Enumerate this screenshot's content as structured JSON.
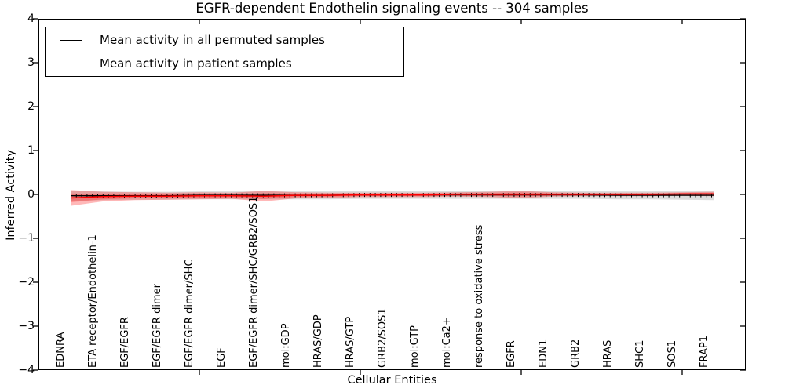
{
  "title": "EGFR-dependent Endothelin signaling events -- 304 samples",
  "axes": {
    "ylabel": "Inferred Activity",
    "xlabel": "Cellular Entities",
    "yticks": [
      "4",
      "3",
      "2",
      "1",
      "0",
      "−1",
      "−2",
      "−3",
      "−4"
    ],
    "ylim": [
      -4,
      4
    ]
  },
  "legend": {
    "items": [
      {
        "label": "Mean activity in all permuted samples",
        "color": "#000000"
      },
      {
        "label": "Mean activity in patient samples",
        "color": "#ff0000"
      }
    ]
  },
  "chart_data": {
    "type": "line",
    "title": "EGFR-dependent Endothelin signaling events -- 304 samples",
    "xlabel": "Cellular Entities",
    "ylabel": "Inferred Activity",
    "ylim": [
      -4,
      4
    ],
    "grid": false,
    "legend_position": "upper left",
    "categories": [
      "EDNRA",
      "ETA receptor/Endothelin-1",
      "EGF/EGFR",
      "EGF/EGFR dimer",
      "EGF/EGFR dimer/SHC",
      "EGF",
      "EGF/EGFR dimer/SHC/GRB2/SOS1",
      "mol:GDP",
      "HRAS/GDP",
      "HRAS/GTP",
      "GRB2/SOS1",
      "mol:GTP",
      "mol:Ca2+",
      "response to oxidative stress",
      "EGFR",
      "EDN1",
      "GRB2",
      "HRAS",
      "SHC1",
      "SOS1",
      "FRAP1"
    ],
    "series": [
      {
        "name": "Mean activity in all permuted samples",
        "color": "#000000",
        "band_color": "#d9d9d9",
        "values": [
          -0.03,
          -0.03,
          -0.03,
          -0.03,
          -0.02,
          -0.02,
          -0.02,
          -0.02,
          -0.02,
          -0.01,
          -0.01,
          -0.01,
          -0.01,
          -0.01,
          -0.01,
          -0.01,
          -0.01,
          -0.02,
          -0.02,
          -0.02,
          -0.02
        ],
        "band_halfwidth": [
          0.12,
          0.1,
          0.09,
          0.09,
          0.09,
          0.09,
          0.09,
          0.09,
          0.09,
          0.09,
          0.09,
          0.09,
          0.09,
          0.09,
          0.09,
          0.09,
          0.09,
          0.09,
          0.09,
          0.1,
          0.11
        ]
      },
      {
        "name": "Mean activity in patient samples",
        "color": "#ff0000",
        "band_color": "#ff0000",
        "values": [
          -0.08,
          -0.05,
          -0.04,
          -0.04,
          -0.03,
          -0.03,
          -0.04,
          -0.02,
          -0.02,
          -0.01,
          -0.01,
          -0.01,
          0.0,
          0.0,
          0.0,
          0.0,
          0.0,
          0.0,
          0.0,
          0.01,
          0.01
        ],
        "band_halfwidth": [
          0.18,
          0.11,
          0.09,
          0.08,
          0.08,
          0.07,
          0.12,
          0.07,
          0.06,
          0.05,
          0.05,
          0.05,
          0.05,
          0.06,
          0.08,
          0.05,
          0.04,
          0.04,
          0.04,
          0.04,
          0.05
        ]
      }
    ]
  }
}
